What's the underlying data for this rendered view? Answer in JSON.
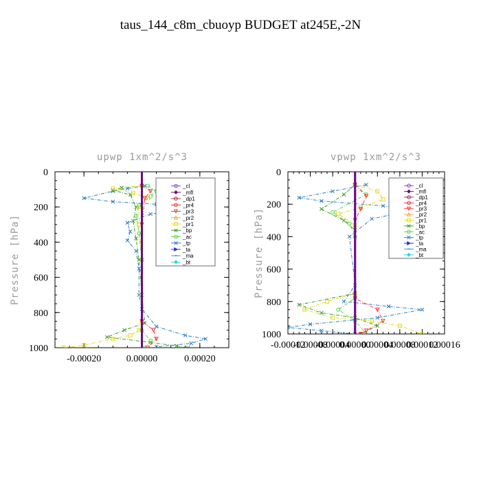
{
  "figure": {
    "title": "taus_144_c8m_cbuoyp  BUDGET at245E,-2N"
  },
  "legend_entries": [
    {
      "name": "_cl",
      "color": "#8c3fd0",
      "marker": "circle"
    },
    {
      "name": "_mfl",
      "color": "#6a0b85",
      "marker": "diamond"
    },
    {
      "name": "_dp1",
      "color": "#a3284a",
      "marker": "circle"
    },
    {
      "name": "_pr4",
      "color": "#e83030",
      "marker": "circle"
    },
    {
      "name": "_pr3",
      "color": "#f03c3c",
      "marker": "triangle-down"
    },
    {
      "name": "_pr2",
      "color": "#f2a640",
      "marker": "triangle"
    },
    {
      "name": "_pr1",
      "color": "#e8d81c",
      "marker": "square"
    },
    {
      "name": "_bp",
      "color": "#3c9a28",
      "marker": "x"
    },
    {
      "name": "_ac",
      "color": "#5ad24a",
      "marker": "circle"
    },
    {
      "name": "_tp",
      "color": "#2a7fc0",
      "marker": "x"
    },
    {
      "name": "_ta",
      "color": "#3030d0",
      "marker": "triangle-right"
    },
    {
      "name": "_ma",
      "color": "#3b9bd8",
      "marker": "dash"
    },
    {
      "name": "_bt",
      "color": "#20d8e0",
      "marker": "diamond"
    }
  ],
  "chart_data": [
    {
      "type": "line",
      "title": "upwp   1xm^2/s^3",
      "ylabel": "Pressure [hPa]",
      "xlabel": "",
      "xlim": [
        -0.0003,
        0.0003
      ],
      "ylim": [
        1000,
        0
      ],
      "xticks": [
        -0.0002,
        0.0,
        0.0002
      ],
      "xtick_labels": [
        "-0.00020",
        "0.00000",
        "0.00020"
      ],
      "yticks": [
        0,
        200,
        400,
        600,
        800,
        1000
      ],
      "ytick_labels": [
        "0",
        "200",
        "400",
        "600",
        "800",
        "1000"
      ],
      "series": [
        {
          "name": "_tp",
          "values": [
            [
              1e-05,
              80
            ],
            [
              -5e-05,
              95
            ],
            [
              -0.0001,
              110
            ],
            [
              -0.0002,
              150
            ],
            [
              -0.0001,
              170
            ],
            [
              5e-05,
              185
            ],
            [
              0.00015,
              215
            ],
            [
              3e-05,
              240
            ],
            [
              -5e-05,
              290
            ],
            [
              -4e-05,
              340
            ],
            [
              -5e-05,
              390
            ],
            [
              -2e-05,
              450
            ],
            [
              -1e-05,
              550
            ],
            [
              -1e-05,
              700
            ],
            [
              0.0,
              780
            ],
            [
              5e-05,
              880
            ],
            [
              0.00015,
              930
            ],
            [
              0.00022,
              950
            ],
            [
              0.00017,
              975
            ],
            [
              5e-05,
              995
            ]
          ]
        },
        {
          "name": "_bp",
          "values": [
            [
              0.0,
              80
            ],
            [
              -7e-05,
              90
            ],
            [
              -0.0001,
              105
            ],
            [
              -4e-05,
              130
            ],
            [
              -2e-05,
              200
            ],
            [
              -3e-05,
              280
            ],
            [
              -2e-05,
              380
            ],
            [
              -1e-05,
              500
            ],
            [
              0.0,
              700
            ],
            [
              1e-05,
              860
            ],
            [
              -6e-05,
              900
            ],
            [
              -0.00012,
              940
            ],
            [
              3e-05,
              970
            ],
            [
              0.00012,
              990
            ],
            [
              0.00016,
              1000
            ]
          ]
        },
        {
          "name": "_pr1",
          "values": [
            [
              0.0,
              80
            ],
            [
              -0.0001,
              95
            ],
            [
              -3e-05,
              120
            ],
            [
              2e-05,
              150
            ],
            [
              -1e-05,
              200
            ],
            [
              -1e-05,
              300
            ],
            [
              0.0,
              500
            ],
            [
              0.0,
              850
            ],
            [
              -1e-05,
              900
            ],
            [
              -4e-05,
              930
            ],
            [
              -0.0001,
              950
            ],
            [
              -0.0002,
              985
            ],
            [
              -0.00027,
              1000
            ]
          ]
        },
        {
          "name": "_ac",
          "values": [
            [
              2e-05,
              80
            ],
            [
              5e-05,
              110
            ],
            [
              3e-05,
              140
            ],
            [
              -1e-05,
              190
            ],
            [
              -2e-05,
              250
            ],
            [
              -1e-05,
              350
            ],
            [
              0.0,
              500
            ],
            [
              0.0,
              900
            ],
            [
              3e-05,
              960
            ],
            [
              1e-05,
              1000
            ]
          ]
        },
        {
          "name": "_pr3",
          "values": [
            [
              0.0,
              80
            ],
            [
              3e-05,
              110
            ],
            [
              1e-05,
              150
            ],
            [
              0.0,
              300
            ],
            [
              0.0,
              850
            ],
            [
              4e-05,
              900
            ],
            [
              5e-05,
              950
            ],
            [
              2e-05,
              1000
            ]
          ]
        },
        {
          "name": "_cl",
          "values": [
            [
              0.0,
              0
            ],
            [
              0.0,
              1000
            ]
          ]
        },
        {
          "name": "_mfl",
          "values": [
            [
              0.0,
              0
            ],
            [
              0.0,
              1000
            ]
          ]
        }
      ]
    },
    {
      "type": "line",
      "title": "vpwp   1xm^2/s^3",
      "ylabel": "Pressure [hPa]",
      "xlabel": "",
      "xlim": [
        -0.00012,
        0.00016
      ],
      "ylim": [
        1000,
        0
      ],
      "xticks": [
        -0.00012,
        -8e-05,
        -4e-05,
        0.0,
        4e-05,
        8e-05,
        0.00012,
        0.00016
      ],
      "xtick_labels": [
        "-0.00012",
        "-0.00008",
        "-0.00004",
        "0.00000",
        "0.00004",
        "0.00008",
        "0.00012",
        "0.00016"
      ],
      "yticks": [
        0,
        200,
        400,
        600,
        800,
        1000
      ],
      "ytick_labels": [
        "0",
        "200",
        "400",
        "600",
        "800",
        "1000"
      ],
      "series": [
        {
          "name": "_tp",
          "values": [
            [
              2e-05,
              80
            ],
            [
              -4e-05,
              120
            ],
            [
              -0.0001,
              160
            ],
            [
              -6e-05,
              180
            ],
            [
              5e-05,
              210
            ],
            [
              0.0001,
              240
            ],
            [
              3e-05,
              290
            ],
            [
              -1e-05,
              400
            ],
            [
              0.0,
              700
            ],
            [
              -2e-05,
              800
            ],
            [
              6e-05,
              830
            ],
            [
              0.00012,
              850
            ],
            [
              4e-05,
              900
            ],
            [
              -8e-05,
              940
            ],
            [
              -0.00012,
              960
            ],
            [
              -6e-05,
              980
            ],
            [
              0.0,
              1000
            ]
          ]
        },
        {
          "name": "_pr1",
          "values": [
            [
              0.0,
              80
            ],
            [
              4e-05,
              120
            ],
            [
              5e-05,
              170
            ],
            [
              1e-05,
              220
            ],
            [
              -3e-05,
              260
            ],
            [
              0.0,
              330
            ],
            [
              0.0,
              750
            ],
            [
              -5e-05,
              800
            ],
            [
              -9e-05,
              850
            ],
            [
              -4e-05,
              900
            ],
            [
              3e-05,
              920
            ],
            [
              8e-05,
              950
            ],
            [
              0.00012,
              1000
            ]
          ]
        },
        {
          "name": "_bp",
          "values": [
            [
              0.0,
              80
            ],
            [
              -2e-05,
              140
            ],
            [
              -6e-05,
              230
            ],
            [
              -2e-05,
              300
            ],
            [
              0.0,
              360
            ],
            [
              0.0,
              750
            ],
            [
              -0.0001,
              820
            ],
            [
              -6e-05,
              870
            ],
            [
              0.0,
              900
            ],
            [
              4e-05,
              950
            ],
            [
              1e-05,
              1000
            ]
          ]
        },
        {
          "name": "_ac",
          "values": [
            [
              0.0,
              80
            ],
            [
              2e-05,
              140
            ],
            [
              -4e-05,
              250
            ],
            [
              -1e-05,
              320
            ],
            [
              0.0,
              400
            ],
            [
              0.0,
              780
            ],
            [
              -3e-05,
              850
            ],
            [
              0.0,
              920
            ],
            [
              2e-05,
              1000
            ]
          ]
        },
        {
          "name": "_pr3",
          "values": [
            [
              0.0,
              80
            ],
            [
              2e-05,
              150
            ],
            [
              1e-05,
              230
            ],
            [
              0.0,
              300
            ],
            [
              0.0,
              780
            ],
            [
              4e-05,
              850
            ],
            [
              5e-05,
              920
            ],
            [
              2e-05,
              980
            ],
            [
              1e-05,
              1000
            ]
          ]
        },
        {
          "name": "_cl",
          "values": [
            [
              0.0,
              0
            ],
            [
              0.0,
              1000
            ]
          ]
        },
        {
          "name": "_mfl",
          "values": [
            [
              0.0,
              0
            ],
            [
              0.0,
              1000
            ]
          ]
        }
      ]
    }
  ]
}
